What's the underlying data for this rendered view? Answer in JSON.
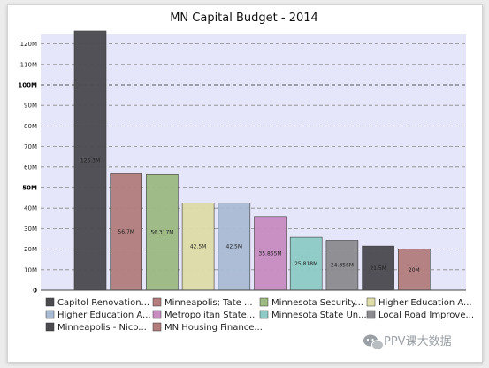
{
  "watermark": {
    "text": "PPV课大数据",
    "icon": "wechat-icon"
  },
  "chart_data": {
    "type": "bar",
    "title": "MN Capital Budget - 2014",
    "xlabel": "",
    "ylabel": "",
    "ylim": [
      0,
      125
    ],
    "yticks": [
      {
        "v": 0,
        "label": "0"
      },
      {
        "v": 10,
        "label": "10M"
      },
      {
        "v": 20,
        "label": "20M"
      },
      {
        "v": 30,
        "label": "30M"
      },
      {
        "v": 40,
        "label": "40M"
      },
      {
        "v": 50,
        "label": "50M"
      },
      {
        "v": 60,
        "label": "60M"
      },
      {
        "v": 70,
        "label": "70M"
      },
      {
        "v": 80,
        "label": "80M"
      },
      {
        "v": 90,
        "label": "90M"
      },
      {
        "v": 100,
        "label": "100M"
      },
      {
        "v": 110,
        "label": "110M"
      },
      {
        "v": 120,
        "label": "120M"
      }
    ],
    "major_ticks": [
      0,
      50,
      100
    ],
    "grid": true,
    "plot_background": "#e6e6fa",
    "legend_position": "bottom",
    "series": [
      {
        "name": "Capitol Renovation...",
        "value": 126.3,
        "label": "126.3M",
        "color": "#4a4a4f"
      },
      {
        "name": "Minneapolis; Tate ...",
        "value": 56.7,
        "label": "56.7M",
        "color": "#b37d7d"
      },
      {
        "name": "Minnesota Security...",
        "value": 56.317,
        "label": "56.317M",
        "color": "#9cba82"
      },
      {
        "name": "Higher Education A...",
        "value": 42.5,
        "label": "42.5M",
        "color": "#dedca7"
      },
      {
        "name": "Higher Education A...",
        "value": 42.5,
        "label": "42.5M",
        "color": "#a9bbd4"
      },
      {
        "name": "Metropolitan State...",
        "value": 35.865,
        "label": "35.865M",
        "color": "#c88cc2"
      },
      {
        "name": "Minnesota State Un...",
        "value": 25.818,
        "label": "25.818M",
        "color": "#8dcbc6"
      },
      {
        "name": "Local Road Improve...",
        "value": 24.356,
        "label": "24.356M",
        "color": "#8b8b8f"
      },
      {
        "name": "Minneapolis - Nico...",
        "value": 21.5,
        "label": "21.5M",
        "color": "#4a4a4f"
      },
      {
        "name": "MN Housing Finance...",
        "value": 20,
        "label": "20M",
        "color": "#b37d7d"
      }
    ]
  }
}
